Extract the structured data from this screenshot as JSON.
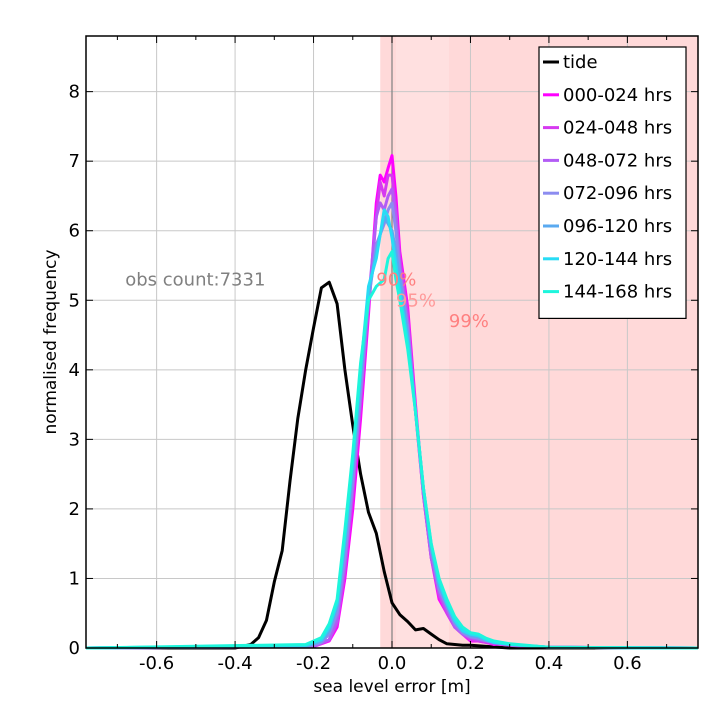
{
  "chart_data": {
    "type": "line",
    "xlabel": "sea level error [m]",
    "ylabel": "normalised frequency",
    "xlim": [
      -0.78,
      0.78
    ],
    "ylim": [
      0,
      8.8
    ],
    "x_ticks": [
      -0.6,
      -0.4,
      -0.2,
      0.0,
      0.2,
      0.4,
      0.6
    ],
    "x_tick_labels": [
      "-0.6",
      "-0.4",
      "-0.2",
      "0.0",
      "0.2",
      "0.4",
      "0.6"
    ],
    "y_ticks": [
      0,
      1,
      2,
      3,
      4,
      5,
      6,
      7,
      8
    ],
    "y_tick_labels": [
      "0",
      "1",
      "2",
      "3",
      "4",
      "5",
      "6",
      "7",
      "8"
    ],
    "grid": true,
    "legend_position": "top-right",
    "zero_line_x": 0.0,
    "count_annotation": {
      "text": "obs count:7331",
      "x": -0.68,
      "y": 5.3,
      "color": "#808080"
    },
    "percentile_bands": [
      {
        "label": "90%",
        "lo": -0.03,
        "hi": 0.01,
        "color": "#ff8080",
        "label_x": -0.04,
        "label_y": 5.3
      },
      {
        "label": "95%",
        "lo": 0.01,
        "hi": 0.145,
        "color": "#ff9999",
        "label_x": 0.01,
        "label_y": 5.0
      },
      {
        "label": "99%",
        "lo": 0.145,
        "hi": 0.78,
        "color": "#ff8080",
        "label_x": 0.145,
        "label_y": 4.7
      }
    ],
    "series": [
      {
        "name": "tide",
        "color": "#000000",
        "x": [
          -0.78,
          -0.5,
          -0.4,
          -0.36,
          -0.34,
          -0.32,
          -0.3,
          -0.28,
          -0.26,
          -0.24,
          -0.22,
          -0.2,
          -0.18,
          -0.16,
          -0.14,
          -0.12,
          -0.1,
          -0.08,
          -0.06,
          -0.04,
          -0.02,
          0.0,
          0.02,
          0.04,
          0.06,
          0.08,
          0.1,
          0.12,
          0.14,
          0.16,
          0.18,
          0.2,
          0.25,
          0.3,
          0.4,
          0.78
        ],
        "y": [
          0,
          0,
          0.0,
          0.05,
          0.15,
          0.4,
          0.95,
          1.4,
          2.4,
          3.3,
          4.0,
          4.6,
          5.18,
          5.26,
          4.95,
          4.0,
          3.2,
          2.5,
          1.95,
          1.65,
          1.1,
          0.65,
          0.48,
          0.38,
          0.26,
          0.28,
          0.2,
          0.12,
          0.06,
          0.05,
          0.04,
          0.04,
          0.02,
          0.0,
          0.0,
          0
        ]
      },
      {
        "name": "000-024 hrs",
        "color": "#ff00ff",
        "x": [
          -0.78,
          -0.2,
          -0.16,
          -0.14,
          -0.12,
          -0.1,
          -0.08,
          -0.06,
          -0.04,
          -0.03,
          -0.02,
          -0.01,
          0.0,
          0.01,
          0.02,
          0.04,
          0.06,
          0.08,
          0.1,
          0.12,
          0.14,
          0.16,
          0.18,
          0.2,
          0.22,
          0.24,
          0.26,
          0.28,
          0.3,
          0.34,
          0.4,
          0.78
        ],
        "y": [
          0,
          0.02,
          0.1,
          0.3,
          1.0,
          2.0,
          3.3,
          4.8,
          6.4,
          6.8,
          6.7,
          6.9,
          7.08,
          6.5,
          5.7,
          4.9,
          3.5,
          2.2,
          1.3,
          0.7,
          0.5,
          0.3,
          0.2,
          0.1,
          0.1,
          0.08,
          0.05,
          0.06,
          0.04,
          0.02,
          0.01,
          0
        ]
      },
      {
        "name": "024-048 hrs",
        "color": "#d63af0",
        "x": [
          -0.78,
          -0.2,
          -0.16,
          -0.14,
          -0.12,
          -0.1,
          -0.08,
          -0.06,
          -0.04,
          -0.03,
          -0.02,
          -0.01,
          0.0,
          0.01,
          0.02,
          0.04,
          0.06,
          0.08,
          0.1,
          0.12,
          0.14,
          0.16,
          0.18,
          0.2,
          0.22,
          0.24,
          0.26,
          0.3,
          0.4,
          0.78
        ],
        "y": [
          0,
          0.02,
          0.12,
          0.35,
          1.1,
          2.2,
          3.5,
          4.9,
          6.2,
          6.7,
          6.5,
          6.8,
          6.8,
          6.3,
          5.6,
          4.8,
          3.4,
          2.2,
          1.3,
          0.75,
          0.5,
          0.3,
          0.2,
          0.12,
          0.1,
          0.08,
          0.06,
          0.04,
          0.01,
          0
        ]
      },
      {
        "name": "048-072 hrs",
        "color": "#b35cf5",
        "x": [
          -0.78,
          -0.2,
          -0.16,
          -0.14,
          -0.12,
          -0.1,
          -0.08,
          -0.06,
          -0.04,
          -0.03,
          -0.02,
          -0.01,
          0.0,
          0.01,
          0.02,
          0.04,
          0.06,
          0.08,
          0.1,
          0.12,
          0.14,
          0.16,
          0.18,
          0.2,
          0.22,
          0.24,
          0.26,
          0.3,
          0.4,
          0.78
        ],
        "y": [
          0,
          0.02,
          0.12,
          0.4,
          1.2,
          2.3,
          3.6,
          5.0,
          6.2,
          6.4,
          6.3,
          6.5,
          6.6,
          6.2,
          5.5,
          4.7,
          3.4,
          2.2,
          1.3,
          0.8,
          0.55,
          0.3,
          0.2,
          0.15,
          0.12,
          0.1,
          0.07,
          0.05,
          0.01,
          0
        ]
      },
      {
        "name": "072-096 hrs",
        "color": "#8c8cf0",
        "x": [
          -0.78,
          -0.22,
          -0.18,
          -0.16,
          -0.14,
          -0.12,
          -0.1,
          -0.08,
          -0.06,
          -0.04,
          -0.02,
          -0.01,
          0.0,
          0.01,
          0.02,
          0.04,
          0.06,
          0.08,
          0.1,
          0.12,
          0.14,
          0.16,
          0.18,
          0.2,
          0.22,
          0.24,
          0.26,
          0.3,
          0.4,
          0.78
        ],
        "y": [
          0,
          0.02,
          0.08,
          0.2,
          0.5,
          1.3,
          2.4,
          3.7,
          5.0,
          5.8,
          6.1,
          6.3,
          6.4,
          6.0,
          5.4,
          4.6,
          3.4,
          2.3,
          1.4,
          0.85,
          0.6,
          0.35,
          0.22,
          0.16,
          0.14,
          0.1,
          0.08,
          0.05,
          0.01,
          0
        ]
      },
      {
        "name": "096-120 hrs",
        "color": "#5aaaf0",
        "x": [
          -0.78,
          -0.22,
          -0.18,
          -0.16,
          -0.14,
          -0.12,
          -0.1,
          -0.08,
          -0.06,
          -0.04,
          -0.02,
          -0.01,
          0.0,
          0.01,
          0.02,
          0.04,
          0.06,
          0.08,
          0.1,
          0.12,
          0.14,
          0.16,
          0.18,
          0.2,
          0.22,
          0.24,
          0.26,
          0.3,
          0.4,
          0.78
        ],
        "y": [
          0,
          0.02,
          0.1,
          0.25,
          0.6,
          1.5,
          2.6,
          3.9,
          5.1,
          5.7,
          6.2,
          6.1,
          6.0,
          5.7,
          5.3,
          4.5,
          3.4,
          2.3,
          1.45,
          0.9,
          0.62,
          0.38,
          0.24,
          0.18,
          0.16,
          0.12,
          0.08,
          0.05,
          0.01,
          0
        ]
      },
      {
        "name": "120-144 hrs",
        "color": "#28dcf5",
        "x": [
          -0.78,
          -0.22,
          -0.18,
          -0.16,
          -0.14,
          -0.12,
          -0.1,
          -0.08,
          -0.06,
          -0.04,
          -0.02,
          -0.01,
          0.0,
          0.01,
          0.02,
          0.04,
          0.06,
          0.08,
          0.1,
          0.12,
          0.14,
          0.16,
          0.18,
          0.2,
          0.22,
          0.24,
          0.26,
          0.3,
          0.4,
          0.78
        ],
        "y": [
          0,
          0.04,
          0.12,
          0.3,
          0.65,
          1.6,
          2.7,
          4.0,
          5.2,
          5.6,
          6.3,
          6.2,
          5.9,
          5.5,
          5.1,
          4.4,
          3.4,
          2.3,
          1.5,
          0.95,
          0.65,
          0.4,
          0.25,
          0.2,
          0.18,
          0.12,
          0.08,
          0.05,
          0.01,
          0
        ]
      },
      {
        "name": "144-168 hrs",
        "color": "#1ef5dc",
        "x": [
          -0.78,
          -0.22,
          -0.18,
          -0.16,
          -0.14,
          -0.12,
          -0.1,
          -0.08,
          -0.06,
          -0.04,
          -0.02,
          -0.01,
          0.0,
          0.01,
          0.02,
          0.04,
          0.06,
          0.08,
          0.1,
          0.12,
          0.14,
          0.16,
          0.18,
          0.2,
          0.22,
          0.24,
          0.26,
          0.3,
          0.4,
          0.78
        ],
        "y": [
          0,
          0.05,
          0.15,
          0.35,
          0.7,
          1.7,
          2.8,
          4.1,
          5.0,
          5.2,
          5.3,
          5.6,
          5.7,
          5.3,
          5.0,
          4.3,
          3.4,
          2.3,
          1.5,
          1.0,
          0.7,
          0.45,
          0.3,
          0.22,
          0.2,
          0.14,
          0.1,
          0.06,
          0.01,
          0
        ]
      }
    ]
  }
}
